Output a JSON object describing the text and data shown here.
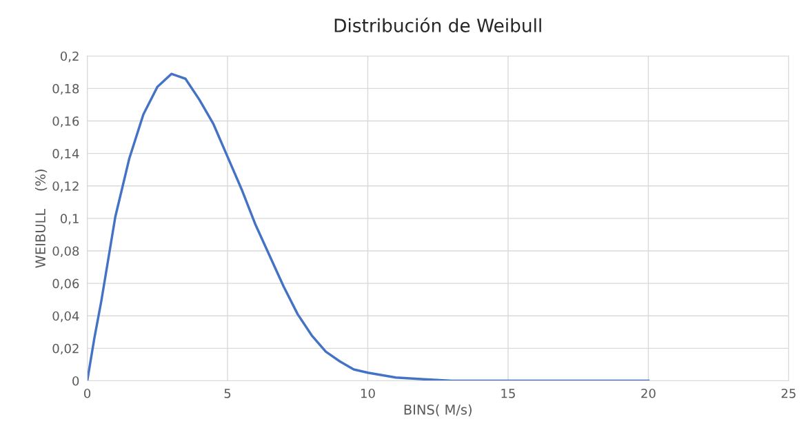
{
  "chart_data": {
    "type": "line",
    "title": "Distribución de Weibull",
    "xlabel": "BINS( M/s)",
    "ylabel": "WEIBULL    (%)",
    "x": [
      0,
      0.25,
      0.5,
      1,
      1.5,
      2,
      2.5,
      3,
      3.5,
      4,
      4.5,
      5,
      5.5,
      6,
      6.5,
      7,
      7.5,
      8,
      8.5,
      9,
      9.5,
      10,
      11,
      12,
      13,
      14,
      15,
      16,
      17,
      18,
      19,
      20
    ],
    "series": [
      {
        "color": "#4472c4",
        "values": [
          0,
          0.026,
          0.049,
          0.101,
          0.137,
          0.164,
          0.181,
          0.189,
          0.186,
          0.173,
          0.158,
          0.138,
          0.118,
          0.096,
          0.077,
          0.058,
          0.041,
          0.028,
          0.018,
          0.012,
          0.007,
          0.005,
          0.002,
          0.001,
          0,
          0,
          0,
          0,
          0,
          0,
          0,
          0
        ]
      }
    ],
    "xlim": [
      0,
      25
    ],
    "xticks": [
      0,
      5,
      10,
      15,
      20,
      25
    ],
    "ylim": [
      0,
      0.2
    ],
    "yticks": [
      {
        "value": 0,
        "label": "0"
      },
      {
        "value": 0.02,
        "label": "0,02"
      },
      {
        "value": 0.04,
        "label": "0,04"
      },
      {
        "value": 0.06,
        "label": "0,06"
      },
      {
        "value": 0.08,
        "label": "0,08"
      },
      {
        "value": 0.1,
        "label": "0,1"
      },
      {
        "value": 0.12,
        "label": "0,12"
      },
      {
        "value": 0.14,
        "label": "0,14"
      },
      {
        "value": 0.16,
        "label": "0,16"
      },
      {
        "value": 0.18,
        "label": "0,18"
      },
      {
        "value": 0.2,
        "label": "0,2"
      }
    ],
    "grid": true,
    "legend": false,
    "marker": "none",
    "line_style": "solid"
  }
}
